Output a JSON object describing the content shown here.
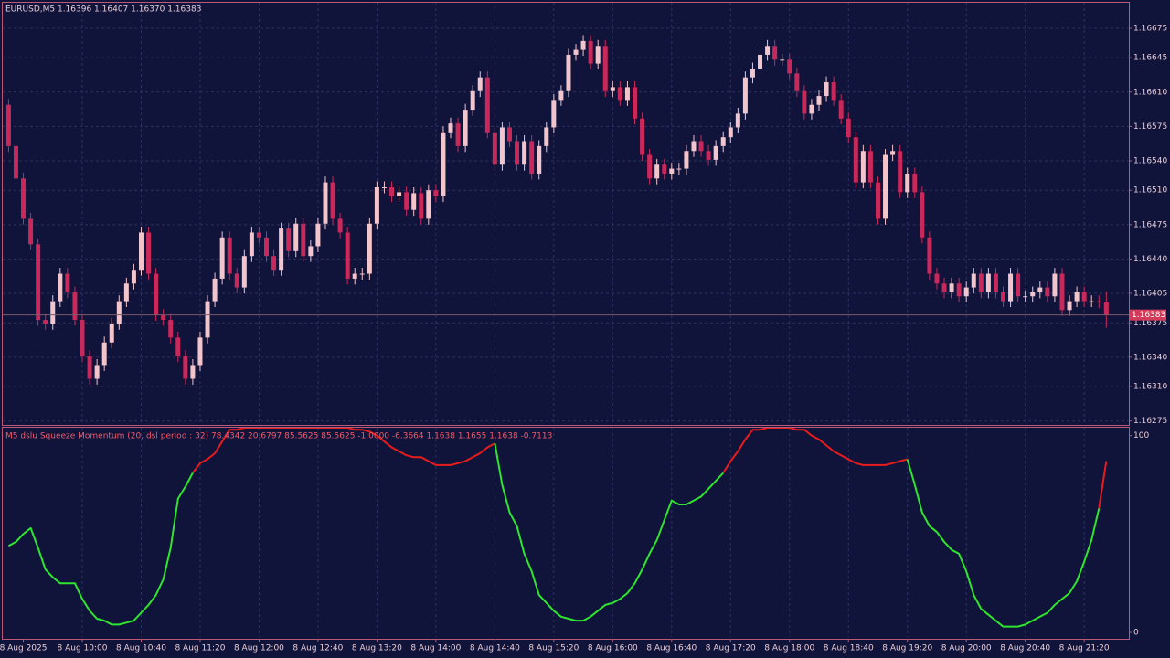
{
  "chart_data": [
    {
      "type": "candlestick",
      "title": "EURUSD,M5  1.16396 1.16407 1.16370 1.16383",
      "current_price": "1.16383",
      "bull_color": "#f2c4cc",
      "bear_color": "#c8285a",
      "grid": true,
      "categories": [
        null,
        null,
        "8 Aug 2025",
        null,
        null,
        null,
        null,
        null,
        null,
        null,
        "8 Aug 10:00",
        null,
        null,
        null,
        null,
        null,
        null,
        null,
        "8 Aug 10:40",
        null,
        null,
        null,
        null,
        null,
        null,
        null,
        "8 Aug 11:20",
        null,
        null,
        null,
        null,
        null,
        null,
        null,
        "8 Aug 12:00",
        null,
        null,
        null,
        null,
        null,
        null,
        null,
        "8 Aug 12:40",
        null,
        null,
        null,
        null,
        null,
        null,
        null,
        "8 Aug 13:20",
        null,
        null,
        null,
        null,
        null,
        null,
        null,
        "8 Aug 14:00",
        null,
        null,
        null,
        null,
        null,
        null,
        null,
        "8 Aug 14:40",
        null,
        null,
        null,
        null,
        null,
        null,
        null,
        "8 Aug 15:20",
        null,
        null,
        null,
        null,
        null,
        null,
        null,
        "8 Aug 16:00",
        null,
        null,
        null,
        null,
        null,
        null,
        null,
        "8 Aug 16:40",
        null,
        null,
        null,
        null,
        null,
        null,
        null,
        "8 Aug 17:20",
        null,
        null,
        null,
        null,
        null,
        null,
        null,
        "8 Aug 18:00",
        null,
        null,
        null,
        null,
        null,
        null,
        null,
        "8 Aug 18:40",
        null,
        null,
        null,
        null,
        null,
        null,
        null,
        "8 Aug 19:20",
        null,
        null,
        null,
        null,
        null,
        null,
        null,
        "8 Aug 20:00",
        null,
        null,
        null,
        null,
        null,
        null,
        null,
        "8 Aug 20:40",
        null,
        null,
        null,
        null,
        null,
        null,
        null,
        "8 Aug 21:20",
        null,
        null,
        null
      ],
      "open": [
        1.16597,
        1.16555,
        1.16522,
        1.16481,
        1.16455,
        1.16378,
        1.16374,
        1.16397,
        1.16425,
        1.16406,
        1.16378,
        1.16341,
        1.16318,
        1.16332,
        1.16355,
        1.16374,
        1.16397,
        1.16415,
        1.16429,
        1.16467,
        1.16425,
        1.16383,
        1.16378,
        1.1636,
        1.16341,
        1.16318,
        1.16332,
        1.1636,
        1.16397,
        1.1642,
        1.16462,
        1.16425,
        1.16411,
        1.16443,
        1.16467,
        1.16462,
        1.16443,
        1.16429,
        1.16471,
        1.16448,
        1.16476,
        1.16443,
        1.16453,
        1.16476,
        1.16518,
        1.16481,
        1.16467,
        1.1642,
        1.16425,
        1.16425,
        1.16476,
        1.16513,
        1.16513,
        1.16504,
        1.16508,
        1.1649,
        1.16507,
        1.16481,
        1.1651,
        1.16504,
        1.16569,
        1.16578,
        1.16555,
        1.16592,
        1.16611,
        1.16625,
        1.16569,
        1.16536,
        1.16574,
        1.1656,
        1.16536,
        1.1656,
        1.16527,
        1.16555,
        1.16574,
        1.16602,
        1.16611,
        1.16648,
        1.16653,
        1.16662,
        1.16639,
        1.16657,
        1.16611,
        1.16615,
        1.16602,
        1.16615,
        1.16583,
        1.16546,
        1.16522,
        1.16536,
        1.16527,
        1.16532,
        1.16532,
        1.1655,
        1.1656,
        1.1655,
        1.16541,
        1.16555,
        1.16564,
        1.16574,
        1.16588,
        1.16625,
        1.16634,
        1.16648,
        1.16657,
        1.16643,
        1.16643,
        1.16629,
        1.16611,
        1.16588,
        1.16597,
        1.16606,
        1.1662,
        1.16602,
        1.16583,
        1.16564,
        1.16518,
        1.1655,
        1.16518,
        1.16481,
        1.16546,
        1.1655,
        1.16508,
        1.16527,
        1.16508,
        1.16462,
        1.16425,
        1.16415,
        1.16406,
        1.16415,
        1.16402,
        1.16411,
        1.16425,
        1.16406,
        1.16425,
        1.16406,
        1.16397,
        1.16425,
        1.16402,
        1.16402,
        1.16406,
        1.16411,
        1.16402,
        1.16425,
        1.16388,
        1.16397,
        1.16406,
        1.16397,
        1.16397,
        1.16396
      ],
      "high": [
        1.16603,
        1.16561,
        1.16528,
        1.16487,
        1.16461,
        1.16384,
        1.16403,
        1.16431,
        1.16431,
        1.16412,
        1.16384,
        1.16347,
        1.16338,
        1.16361,
        1.1638,
        1.16403,
        1.16421,
        1.16435,
        1.16473,
        1.16473,
        1.16431,
        1.16389,
        1.16384,
        1.16366,
        1.16347,
        1.16338,
        1.16366,
        1.16403,
        1.16426,
        1.16468,
        1.16468,
        1.16431,
        1.16449,
        1.16473,
        1.16473,
        1.16468,
        1.16449,
        1.16477,
        1.16477,
        1.16482,
        1.16482,
        1.16459,
        1.16482,
        1.16524,
        1.16524,
        1.16487,
        1.16473,
        1.16431,
        1.16431,
        1.16482,
        1.16519,
        1.16519,
        1.16519,
        1.16514,
        1.16514,
        1.16513,
        1.16513,
        1.16516,
        1.16516,
        1.16575,
        1.16584,
        1.16584,
        1.16598,
        1.16617,
        1.16631,
        1.16631,
        1.16575,
        1.1658,
        1.1658,
        1.16566,
        1.16566,
        1.16566,
        1.16561,
        1.1658,
        1.16608,
        1.16617,
        1.16654,
        1.16659,
        1.16668,
        1.16668,
        1.16663,
        1.16663,
        1.16621,
        1.16621,
        1.16621,
        1.16621,
        1.16589,
        1.16552,
        1.16542,
        1.16542,
        1.16538,
        1.16538,
        1.16556,
        1.16566,
        1.16566,
        1.16556,
        1.16561,
        1.1657,
        1.1658,
        1.16594,
        1.16631,
        1.1664,
        1.16654,
        1.16663,
        1.16663,
        1.16649,
        1.16649,
        1.16635,
        1.16617,
        1.16603,
        1.16612,
        1.16626,
        1.16626,
        1.16608,
        1.16589,
        1.1657,
        1.16556,
        1.16556,
        1.16524,
        1.16552,
        1.16556,
        1.16556,
        1.16533,
        1.16533,
        1.16514,
        1.16468,
        1.16431,
        1.16421,
        1.16421,
        1.16421,
        1.16417,
        1.16431,
        1.16431,
        1.16431,
        1.16431,
        1.16412,
        1.16431,
        1.16431,
        1.16408,
        1.16412,
        1.16417,
        1.16417,
        1.16431,
        1.16431,
        1.16403,
        1.16412,
        1.16412,
        1.16403,
        1.16403,
        1.16407
      ],
      "low": [
        1.16549,
        1.16516,
        1.16475,
        1.16449,
        1.16372,
        1.16368,
        1.16368,
        1.16391,
        1.164,
        1.16372,
        1.16335,
        1.16312,
        1.16312,
        1.16326,
        1.16349,
        1.16368,
        1.16391,
        1.16409,
        1.16423,
        1.16419,
        1.16377,
        1.16372,
        1.16354,
        1.16335,
        1.16312,
        1.16312,
        1.16326,
        1.16354,
        1.16391,
        1.16414,
        1.16419,
        1.16405,
        1.16405,
        1.16437,
        1.16456,
        1.16437,
        1.16423,
        1.16423,
        1.16442,
        1.16442,
        1.16437,
        1.16437,
        1.16447,
        1.1647,
        1.16475,
        1.16461,
        1.16414,
        1.16414,
        1.16419,
        1.16419,
        1.1647,
        1.16507,
        1.16498,
        1.16498,
        1.16484,
        1.16484,
        1.16475,
        1.16475,
        1.16498,
        1.16498,
        1.16563,
        1.16549,
        1.16549,
        1.16586,
        1.16605,
        1.16563,
        1.1653,
        1.1653,
        1.16554,
        1.1653,
        1.1653,
        1.16521,
        1.16521,
        1.16549,
        1.16568,
        1.16596,
        1.16605,
        1.16642,
        1.16647,
        1.16633,
        1.16633,
        1.16605,
        1.16605,
        1.16596,
        1.16596,
        1.16577,
        1.1654,
        1.16516,
        1.16516,
        1.16521,
        1.16521,
        1.16526,
        1.16526,
        1.16544,
        1.16544,
        1.16535,
        1.16535,
        1.16549,
        1.16558,
        1.16568,
        1.16582,
        1.16619,
        1.16628,
        1.16642,
        1.16637,
        1.16637,
        1.16623,
        1.16605,
        1.16582,
        1.16582,
        1.16591,
        1.166,
        1.16596,
        1.16577,
        1.16558,
        1.16512,
        1.16512,
        1.16512,
        1.16475,
        1.16475,
        1.1654,
        1.16502,
        1.16502,
        1.16502,
        1.16456,
        1.16419,
        1.16409,
        1.164,
        1.164,
        1.16396,
        1.16396,
        1.16405,
        1.164,
        1.164,
        1.164,
        1.16391,
        1.16391,
        1.16396,
        1.16396,
        1.16396,
        1.164,
        1.16396,
        1.16396,
        1.16382,
        1.16382,
        1.16391,
        1.16391,
        1.16391,
        1.1639,
        1.1637
      ],
      "close": [
        1.16555,
        1.16522,
        1.16481,
        1.16455,
        1.16378,
        1.16374,
        1.16397,
        1.16425,
        1.16406,
        1.16378,
        1.16341,
        1.16318,
        1.16332,
        1.16355,
        1.16374,
        1.16397,
        1.16415,
        1.16429,
        1.16467,
        1.16425,
        1.16383,
        1.16378,
        1.1636,
        1.16341,
        1.16318,
        1.16332,
        1.1636,
        1.16397,
        1.1642,
        1.16462,
        1.16425,
        1.16411,
        1.16443,
        1.16467,
        1.16462,
        1.16443,
        1.16429,
        1.16471,
        1.16448,
        1.16476,
        1.16443,
        1.16453,
        1.16476,
        1.16518,
        1.16481,
        1.16467,
        1.1642,
        1.16425,
        1.16425,
        1.16476,
        1.16513,
        1.16513,
        1.16504,
        1.16508,
        1.1649,
        1.16507,
        1.16481,
        1.1651,
        1.16504,
        1.16569,
        1.16578,
        1.16555,
        1.16592,
        1.16611,
        1.16625,
        1.16569,
        1.16536,
        1.16574,
        1.1656,
        1.16536,
        1.1656,
        1.16527,
        1.16555,
        1.16574,
        1.16602,
        1.16611,
        1.16648,
        1.16653,
        1.16662,
        1.16639,
        1.16657,
        1.16611,
        1.16615,
        1.16602,
        1.16615,
        1.16583,
        1.16546,
        1.16522,
        1.16536,
        1.16527,
        1.16532,
        1.16532,
        1.1655,
        1.1656,
        1.1655,
        1.16541,
        1.16555,
        1.16564,
        1.16574,
        1.16588,
        1.16625,
        1.16634,
        1.16648,
        1.16657,
        1.16643,
        1.16643,
        1.16629,
        1.16611,
        1.16588,
        1.16597,
        1.16606,
        1.1662,
        1.16602,
        1.16583,
        1.16564,
        1.16518,
        1.1655,
        1.16518,
        1.16481,
        1.16546,
        1.1655,
        1.16508,
        1.16527,
        1.16508,
        1.16462,
        1.16425,
        1.16415,
        1.16406,
        1.16415,
        1.16402,
        1.16411,
        1.16425,
        1.16406,
        1.16425,
        1.16406,
        1.16397,
        1.16425,
        1.16402,
        1.16402,
        1.16406,
        1.16411,
        1.16402,
        1.16425,
        1.16388,
        1.16397,
        1.16406,
        1.16397,
        1.16397,
        1.16396,
        1.16383
      ],
      "ylim": [
        1.16271,
        1.16701
      ],
      "yticks": [
        1.16675,
        1.16645,
        {
          "value": 1.1661,
          "label": "1.16610"
        },
        1.16575,
        {
          "value": 1.1654,
          "label": "1.16540"
        },
        {
          "value": 1.1651,
          "label": "1.16510"
        },
        1.16475,
        {
          "value": 1.1644,
          "label": "1.16440"
        },
        1.16405,
        1.16375,
        {
          "value": 1.1634,
          "label": "1.16340"
        },
        {
          "value": 1.1631,
          "label": "1.16310"
        },
        1.16275
      ]
    },
    {
      "type": "line",
      "title": "M5 dslu Squeeze Momentum (20, dsl period : 32) 78.4342 20.6797 85.5625 85.5625 -1.0000 -6.3664 1.1638 1.1655 1.1638 -0.7113",
      "palette": [
        "#2ee62e",
        "#e81c1c"
      ],
      "values": [
        44,
        46,
        50,
        53,
        43,
        32,
        28,
        25,
        25,
        25,
        17,
        11,
        7,
        6,
        4,
        4,
        5,
        6,
        10,
        14,
        19,
        27,
        43,
        68,
        74,
        81,
        86,
        88,
        91,
        97,
        103,
        103,
        104,
        104,
        104,
        104,
        104,
        104,
        104,
        104,
        104,
        104,
        104,
        104,
        104,
        104,
        104,
        103,
        103,
        102,
        100,
        97,
        94,
        92,
        90,
        89,
        89,
        87,
        85,
        85,
        85,
        86,
        87,
        89,
        91,
        94,
        96,
        75,
        61,
        54,
        40,
        31,
        19,
        15,
        11,
        8,
        7,
        6,
        6,
        8,
        11,
        14,
        15,
        17,
        20,
        25,
        32,
        40,
        47,
        57,
        67,
        65,
        65,
        67,
        69,
        73,
        77,
        81,
        87,
        92,
        98,
        103,
        103,
        104,
        104,
        104,
        104,
        103,
        103,
        100,
        98,
        95,
        92,
        90,
        88,
        86,
        85,
        85,
        85,
        85,
        86,
        87,
        88,
        75,
        61,
        54,
        51,
        46,
        42,
        40,
        31,
        19,
        12,
        9,
        6,
        3,
        3,
        3,
        4,
        6,
        8,
        10,
        14,
        17,
        20,
        26,
        36,
        47,
        63,
        87
      ],
      "color_index": [
        0,
        0,
        0,
        0,
        0,
        0,
        0,
        0,
        0,
        0,
        0,
        0,
        0,
        0,
        0,
        0,
        0,
        0,
        0,
        0,
        0,
        0,
        0,
        0,
        0,
        0,
        1,
        1,
        1,
        1,
        1,
        1,
        1,
        1,
        1,
        1,
        1,
        1,
        1,
        1,
        1,
        1,
        1,
        1,
        1,
        1,
        1,
        1,
        1,
        1,
        1,
        1,
        1,
        1,
        1,
        1,
        1,
        1,
        1,
        1,
        1,
        1,
        1,
        1,
        1,
        1,
        1,
        0,
        0,
        0,
        0,
        0,
        0,
        0,
        0,
        0,
        0,
        0,
        0,
        0,
        0,
        0,
        0,
        0,
        0,
        0,
        0,
        0,
        0,
        0,
        0,
        0,
        0,
        0,
        0,
        0,
        0,
        0,
        1,
        1,
        1,
        1,
        1,
        1,
        1,
        1,
        1,
        1,
        1,
        1,
        1,
        1,
        1,
        1,
        1,
        1,
        1,
        1,
        1,
        1,
        1,
        1,
        1,
        0,
        0,
        0,
        0,
        0,
        0,
        0,
        0,
        0,
        0,
        0,
        0,
        0,
        0,
        0,
        0,
        0,
        0,
        0,
        0,
        0,
        0,
        0,
        0,
        0,
        0,
        1
      ],
      "ylim": [
        -2.3,
        104
      ],
      "yticks": [
        0,
        100
      ]
    }
  ]
}
